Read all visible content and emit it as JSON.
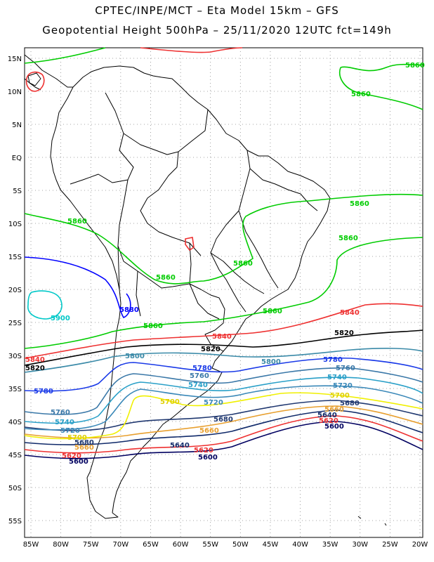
{
  "title_line1": "CPTEC/INPE/MCT –  Eta Model 15km – GFS",
  "title_line2": "Geopotential Height 500hPa – 25/11/2020 12UTC fct=149h",
  "lat_labels": [
    "15N",
    "10N",
    "5N",
    "EQ",
    "5S",
    "10S",
    "15S",
    "20S",
    "25S",
    "30S",
    "35S",
    "40S",
    "45S",
    "50S",
    "55S"
  ],
  "lon_labels": [
    "85W",
    "80W",
    "75W",
    "70W",
    "65W",
    "60W",
    "55W",
    "50W",
    "45W",
    "40W",
    "35W",
    "30W",
    "25W",
    "20W"
  ],
  "contours": [
    {
      "value": "5900",
      "color": "#00c8c8"
    },
    {
      "value": "5880",
      "color": "#0000ff"
    },
    {
      "value": "5860",
      "color": "#00cc00"
    },
    {
      "value": "5840",
      "color": "#ee3030"
    },
    {
      "value": "5820",
      "color": "#000000"
    },
    {
      "value": "5800",
      "color": "#3a8aa8"
    },
    {
      "value": "5780",
      "color": "#1a3ae8"
    },
    {
      "value": "5760",
      "color": "#3a78a8"
    },
    {
      "value": "5740",
      "color": "#2aa0c8"
    },
    {
      "value": "5720",
      "color": "#3a88b8"
    },
    {
      "value": "5700",
      "color": "#f0f000"
    },
    {
      "value": "5680",
      "color": "#203870"
    },
    {
      "value": "5660",
      "color": "#e8a030"
    },
    {
      "value": "5640",
      "color": "#102a6a"
    },
    {
      "value": "5620",
      "color": "#ee3030"
    },
    {
      "value": "5600",
      "color": "#000060"
    }
  ]
}
